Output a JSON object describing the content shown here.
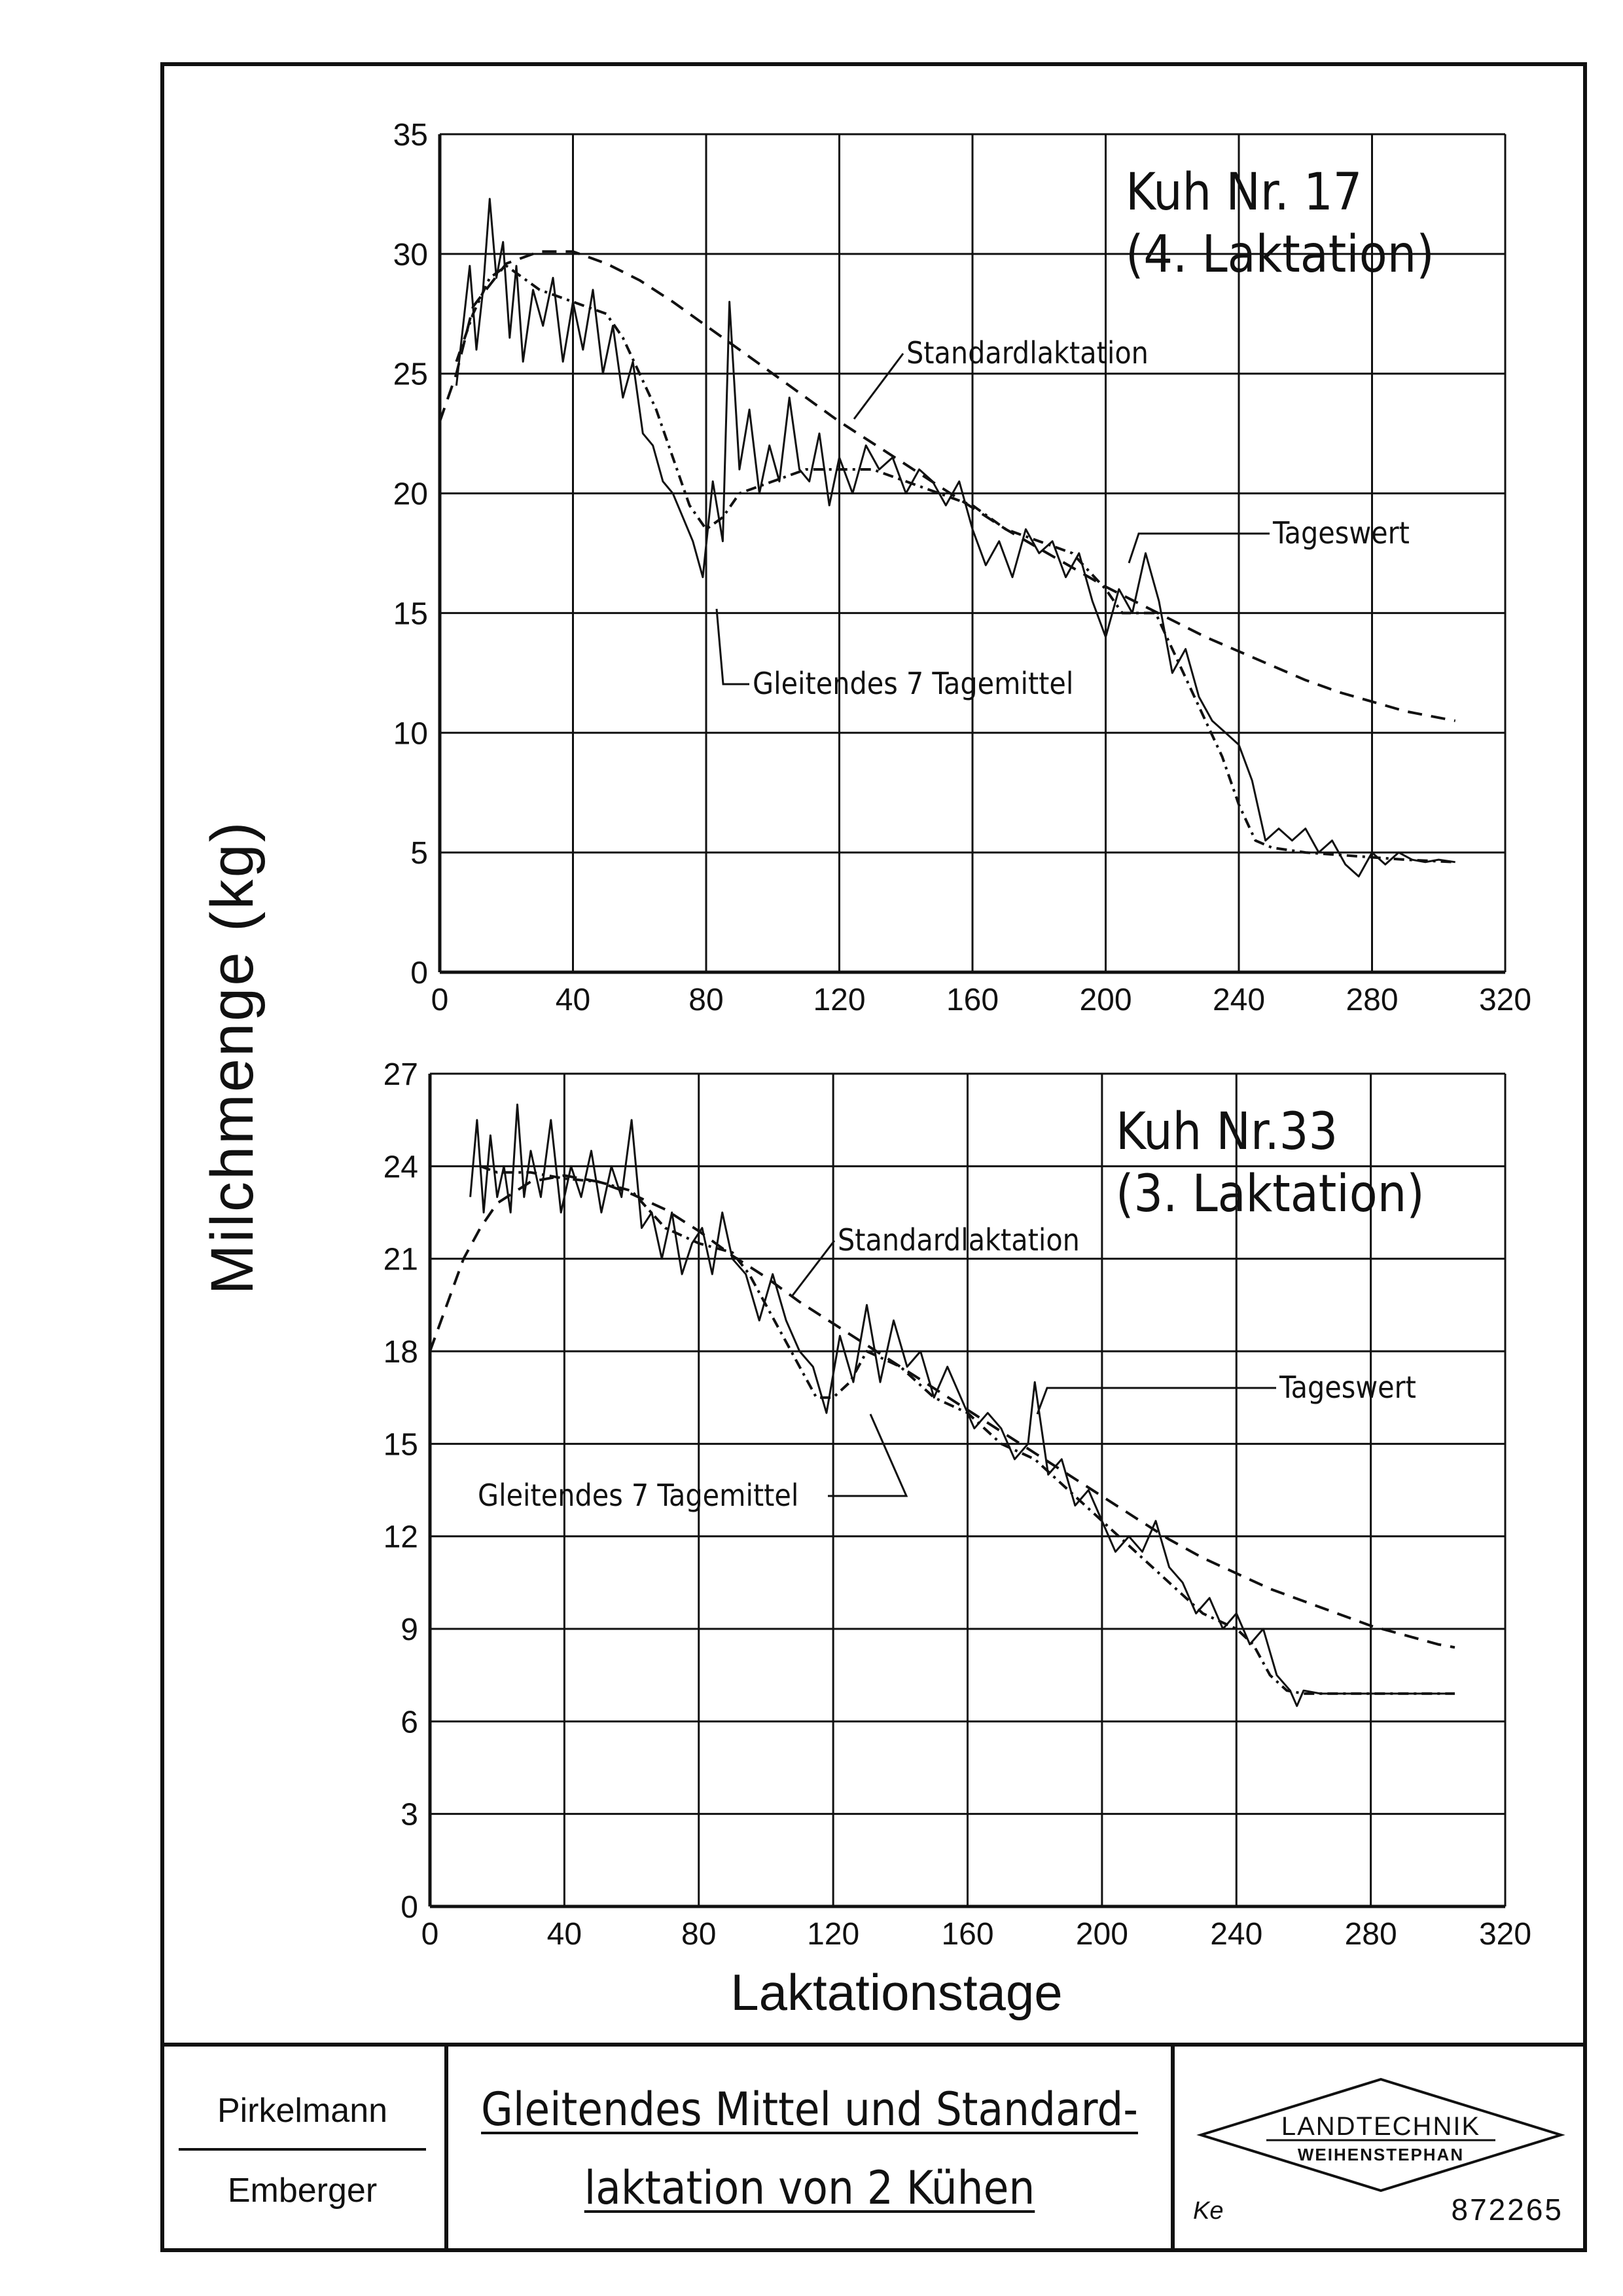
{
  "labels": {
    "y_axis": "Milchmenge (kg)",
    "x_axis": "Laktationstage"
  },
  "title_block": {
    "author1": "Pirkelmann",
    "author2": "Emberger",
    "title_line1": "Gleitendes Mittel und Standard-",
    "title_line2": "laktation von 2 Kühen",
    "logo_line1": "LANDTECHNIK",
    "logo_line2": "WEIHENSTEPHAN",
    "ke": "Ke",
    "doc_no": "872265"
  },
  "chart_data": [
    {
      "type": "line",
      "annotation_title": [
        "Kuh Nr. 17",
        "(4. Laktation)"
      ],
      "xlim": [
        0,
        320
      ],
      "ylim": [
        0,
        35
      ],
      "xticks": [
        0,
        40,
        80,
        120,
        160,
        200,
        240,
        280,
        320
      ],
      "yticks": [
        0,
        5,
        10,
        15,
        20,
        25,
        30,
        35
      ],
      "xlabel": "Laktationstage",
      "ylabel": "Milchmenge (kg)",
      "grid": true,
      "series": [
        {
          "name": "Standardlaktation",
          "style": "dashed",
          "x": [
            0,
            5,
            10,
            20,
            30,
            40,
            50,
            60,
            70,
            80,
            90,
            100,
            110,
            120,
            130,
            140,
            150,
            160,
            170,
            180,
            190,
            200,
            210,
            220,
            230,
            240,
            250,
            260,
            270,
            280,
            290,
            305
          ],
          "y": [
            23,
            25,
            27.8,
            29.6,
            30.1,
            30.1,
            29.6,
            28.9,
            28.0,
            27.0,
            26.0,
            25.0,
            24.0,
            23.0,
            22.1,
            21.2,
            20.3,
            19.4,
            18.5,
            17.7,
            16.9,
            16.1,
            15.4,
            14.7,
            14.0,
            13.4,
            12.8,
            12.2,
            11.7,
            11.3,
            10.9,
            10.5
          ]
        },
        {
          "name": "Gleitendes 7 Tagemittel",
          "style": "dash-dot",
          "x": [
            5,
            10,
            15,
            20,
            30,
            40,
            50,
            55,
            60,
            65,
            70,
            75,
            80,
            85,
            90,
            100,
            110,
            120,
            130,
            140,
            150,
            160,
            170,
            180,
            190,
            200,
            205,
            210,
            215,
            220,
            225,
            230,
            235,
            240,
            245,
            250,
            260,
            270,
            280,
            290,
            305
          ],
          "y": [
            25.5,
            27.5,
            29,
            29.5,
            28.5,
            28,
            27.5,
            26.5,
            25,
            23.5,
            21.5,
            19.5,
            18.5,
            19,
            20,
            20.5,
            21,
            21,
            21,
            20.5,
            20,
            19.5,
            18.5,
            18,
            17.5,
            16,
            15,
            15,
            15,
            13.5,
            12,
            10.5,
            9,
            7,
            5.5,
            5.2,
            5,
            4.9,
            4.8,
            4.7,
            4.6
          ]
        },
        {
          "name": "Tageswert",
          "style": "solid",
          "x": [
            5,
            7,
            9,
            11,
            13,
            15,
            17,
            19,
            21,
            23,
            25,
            28,
            31,
            34,
            37,
            40,
            43,
            46,
            49,
            52,
            55,
            58,
            61,
            64,
            67,
            70,
            73,
            76,
            79,
            82,
            85,
            87,
            90,
            93,
            96,
            99,
            102,
            105,
            108,
            111,
            114,
            117,
            120,
            124,
            128,
            132,
            136,
            140,
            144,
            148,
            152,
            156,
            160,
            164,
            168,
            172,
            176,
            180,
            184,
            188,
            192,
            196,
            200,
            204,
            208,
            212,
            216,
            220,
            224,
            228,
            232,
            236,
            240,
            244,
            248,
            252,
            256,
            260,
            264,
            268,
            272,
            276,
            280,
            284,
            288,
            292,
            296,
            300,
            305
          ],
          "y": [
            24.5,
            27,
            29.5,
            26,
            28.5,
            32.3,
            29,
            30.5,
            26.5,
            29.5,
            25.5,
            28.5,
            27,
            29,
            25.5,
            28,
            26,
            28.5,
            25,
            27,
            24,
            25.5,
            22.5,
            22,
            20.5,
            20,
            19,
            18,
            16.5,
            20.5,
            18,
            28,
            21,
            23.5,
            20,
            22,
            20.5,
            24,
            21,
            20.5,
            22.5,
            19.5,
            21.5,
            20,
            22,
            21,
            21.5,
            20,
            21,
            20.5,
            19.5,
            20.5,
            18.5,
            17,
            18,
            16.5,
            18.5,
            17.5,
            18,
            16.5,
            17.5,
            15.5,
            14,
            16,
            15,
            17.5,
            15.5,
            12.5,
            13.5,
            11.5,
            10.5,
            10,
            9.5,
            8,
            5.5,
            6,
            5.5,
            6,
            5,
            5.5,
            4.5,
            4,
            5,
            4.5,
            5,
            4.7,
            4.6,
            4.7,
            4.6
          ]
        }
      ],
      "annotations": [
        "Standardlaktation",
        "Tageswert",
        "Gleitendes 7 Tagemittel"
      ]
    },
    {
      "type": "line",
      "annotation_title": [
        "Kuh Nr.33",
        "(3. Laktation)"
      ],
      "xlim": [
        0,
        320
      ],
      "ylim": [
        0,
        27
      ],
      "xticks": [
        0,
        40,
        80,
        120,
        160,
        200,
        240,
        280,
        320
      ],
      "yticks": [
        0,
        3,
        6,
        9,
        12,
        15,
        18,
        21,
        24,
        27
      ],
      "xlabel": "Laktationstage",
      "ylabel": "Milchmenge (kg)",
      "grid": true,
      "series": [
        {
          "name": "Standardlaktation",
          "style": "dashed",
          "x": [
            0,
            5,
            10,
            15,
            20,
            30,
            40,
            50,
            60,
            70,
            80,
            90,
            100,
            110,
            120,
            130,
            140,
            150,
            160,
            170,
            180,
            190,
            200,
            210,
            220,
            230,
            240,
            250,
            260,
            270,
            280,
            290,
            300,
            305
          ],
          "y": [
            18,
            19.5,
            21,
            22,
            22.8,
            23.5,
            23.7,
            23.5,
            23.1,
            22.6,
            21.9,
            21.1,
            20.4,
            19.6,
            18.9,
            18.2,
            17.5,
            16.8,
            16.1,
            15.4,
            14.7,
            14.0,
            13.3,
            12.6,
            11.9,
            11.3,
            10.8,
            10.3,
            9.9,
            9.5,
            9.1,
            8.8,
            8.5,
            8.4
          ]
        },
        {
          "name": "Gleitendes 7 Tagemittel",
          "style": "dash-dot",
          "x": [
            15,
            20,
            30,
            40,
            50,
            60,
            70,
            80,
            90,
            95,
            100,
            105,
            110,
            115,
            120,
            125,
            130,
            140,
            150,
            160,
            170,
            180,
            190,
            200,
            210,
            220,
            230,
            240,
            245,
            250,
            255,
            260,
            270,
            280,
            290,
            305
          ],
          "y": [
            24,
            23.8,
            23.8,
            23.6,
            23.5,
            23.2,
            22,
            21.5,
            21.2,
            20.5,
            19.5,
            18.5,
            17.5,
            16.5,
            16.5,
            17,
            18,
            17.5,
            16.5,
            16,
            15,
            14.5,
            13.5,
            12.5,
            11.5,
            10.5,
            9.5,
            9,
            8.5,
            7.5,
            7,
            6.9,
            6.9,
            6.9,
            6.9,
            6.9
          ]
        },
        {
          "name": "Tageswert",
          "style": "solid",
          "x": [
            12,
            14,
            16,
            18,
            20,
            22,
            24,
            26,
            28,
            30,
            33,
            36,
            39,
            42,
            45,
            48,
            51,
            54,
            57,
            60,
            63,
            66,
            69,
            72,
            75,
            78,
            81,
            84,
            87,
            90,
            94,
            98,
            102,
            106,
            110,
            114,
            118,
            122,
            126,
            130,
            134,
            138,
            142,
            146,
            150,
            154,
            158,
            162,
            166,
            170,
            174,
            178,
            180,
            184,
            188,
            192,
            196,
            200,
            204,
            208,
            212,
            216,
            220,
            224,
            228,
            232,
            236,
            240,
            244,
            248,
            252,
            256,
            258,
            260,
            265,
            270,
            280,
            290,
            305
          ],
          "y": [
            23,
            25.5,
            22.5,
            25,
            23,
            24,
            22.5,
            26,
            23,
            24.5,
            23,
            25.5,
            22.5,
            24,
            23,
            24.5,
            22.5,
            24,
            23,
            25.5,
            22,
            22.5,
            21,
            22.5,
            20.5,
            21.5,
            22,
            20.5,
            22.5,
            21,
            20.5,
            19,
            20.5,
            19,
            18,
            17.5,
            16,
            18.5,
            17,
            19.5,
            17,
            19,
            17.5,
            18,
            16.5,
            17.5,
            16.5,
            15.5,
            16,
            15.5,
            14.5,
            15,
            17,
            14,
            14.5,
            13,
            13.5,
            12.5,
            11.5,
            12,
            11.5,
            12.5,
            11,
            10.5,
            9.5,
            10,
            9,
            9.5,
            8.5,
            9,
            7.5,
            7,
            6.5,
            7,
            6.9,
            6.9,
            6.9,
            6.9,
            6.9
          ]
        }
      ],
      "annotations": [
        "Standardlaktation",
        "Tageswert",
        "Gleitendes 7 Tagemittel"
      ]
    }
  ]
}
